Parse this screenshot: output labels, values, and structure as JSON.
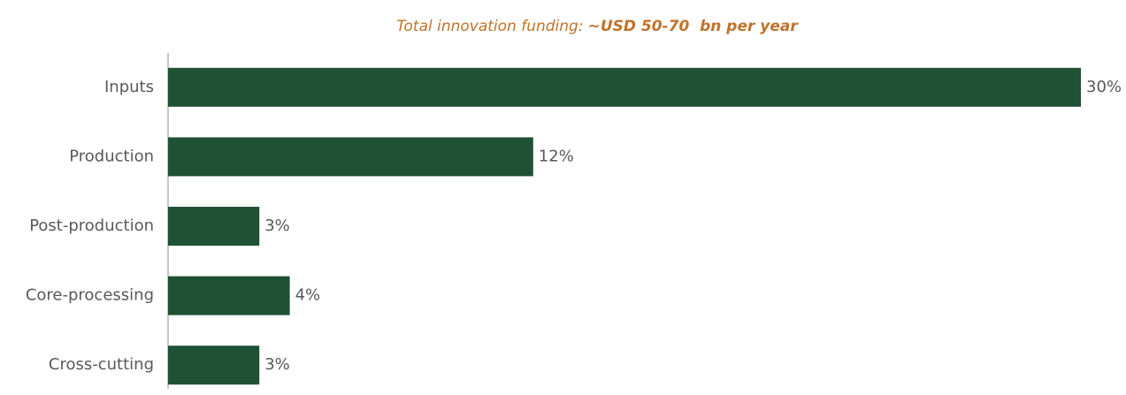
{
  "chart_data": {
    "type": "barh",
    "title_prefix": "Total innovation funding:",
    "title_emphasis": "~USD 50-70  bn per year",
    "categories": [
      "Inputs",
      "Production",
      "Post-production",
      "Core-processing",
      "Cross-cutting"
    ],
    "values": [
      30,
      12,
      3,
      4,
      3
    ],
    "value_labels": [
      "30%",
      "12%",
      "3%",
      "4%",
      "3%"
    ],
    "color": "#1f5134",
    "xlim": [
      0,
      30
    ]
  }
}
